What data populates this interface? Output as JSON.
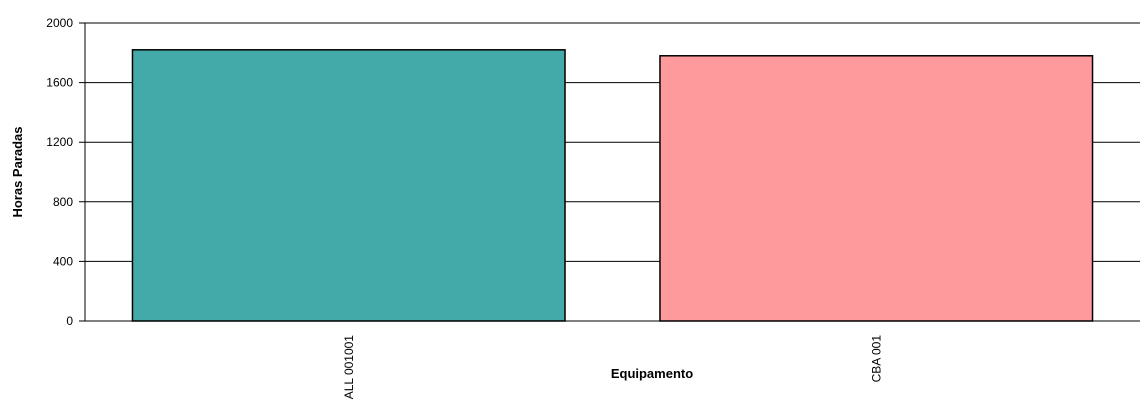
{
  "chart_data": {
    "type": "bar",
    "categories": [
      "ALL 001001",
      "CBA 001"
    ],
    "values": [
      1820,
      1780
    ],
    "colors": [
      "#43a9a9",
      "#ff9a9c"
    ],
    "xlabel": "Equipamento",
    "ylabel": "Horas Paradas",
    "ylim": [
      0,
      2000
    ],
    "yticks": [
      0,
      400,
      800,
      1200,
      1600,
      2000
    ],
    "grid": true
  }
}
